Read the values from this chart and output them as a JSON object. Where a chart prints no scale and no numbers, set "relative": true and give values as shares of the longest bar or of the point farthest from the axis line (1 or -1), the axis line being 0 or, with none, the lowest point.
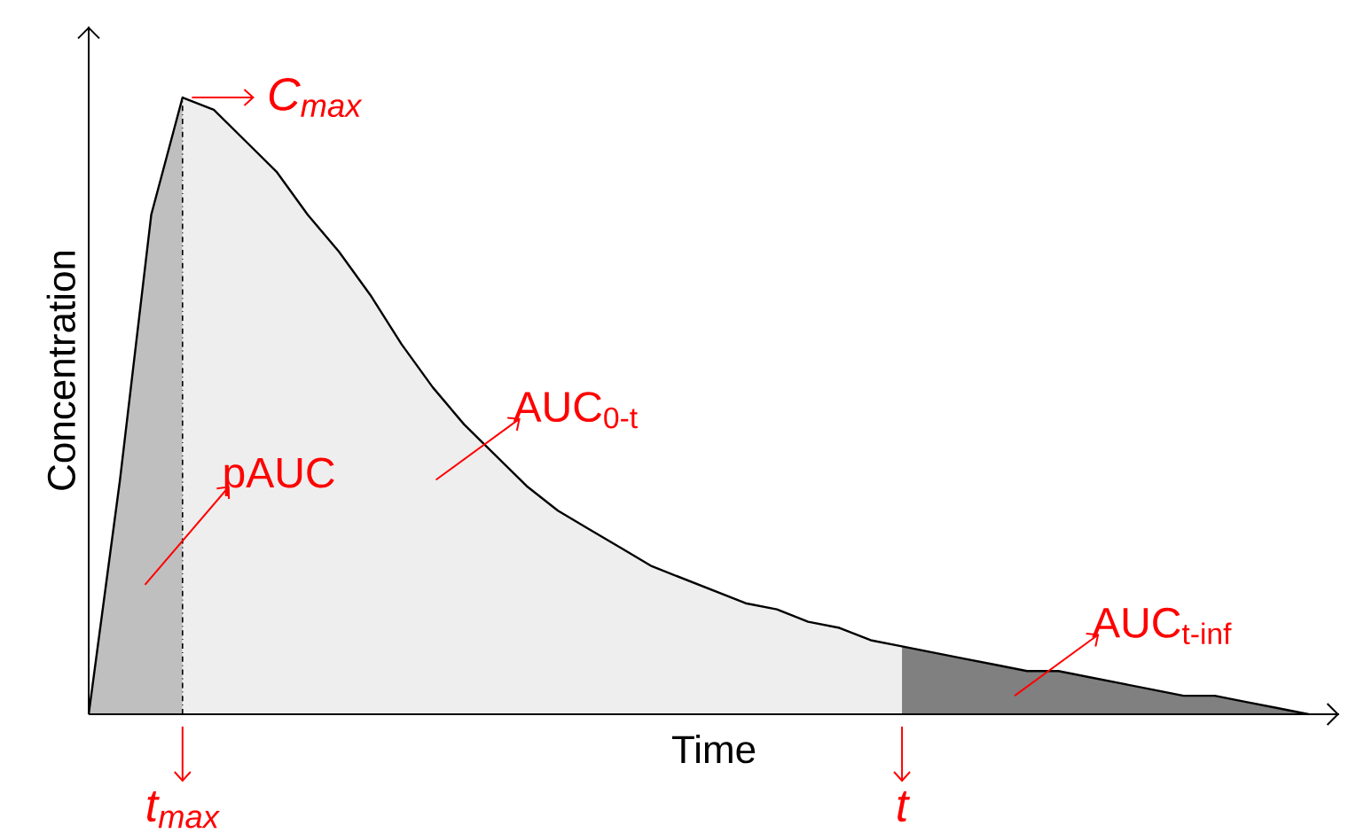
{
  "chart_data": {
    "type": "area",
    "relative": true,
    "xlabel": "Time",
    "ylabel": "Concentration",
    "categories": [
      null,
      null,
      null,
      null,
      null,
      null,
      null,
      null,
      null,
      null,
      null,
      null,
      null,
      null,
      null,
      null,
      null,
      null,
      null,
      null,
      null,
      null,
      null,
      null,
      null,
      null,
      null,
      null,
      null,
      null,
      null,
      null,
      null,
      null,
      null,
      null,
      null,
      null,
      null,
      null
    ],
    "series": [
      {
        "type": "line",
        "color": "#000000",
        "values": [
          0,
          0.38,
          0.81,
          1.0,
          0.98,
          0.93,
          0.88,
          0.81,
          0.75,
          0.68,
          0.6,
          0.53,
          0.47,
          0.42,
          0.37,
          0.33,
          0.3,
          0.27,
          0.24,
          0.22,
          0.2,
          0.18,
          0.17,
          0.15,
          0.14,
          0.12,
          0.11,
          0.1,
          0.09,
          0.08,
          0.07,
          0.07,
          0.06,
          0.05,
          0.04,
          0.03,
          0.03,
          0.02,
          0.01,
          0
        ]
      },
      {
        "name": "pAUC",
        "color": "#bfbfbf",
        "values": [
          0,
          0.38,
          0.81,
          1.0,
          null,
          null,
          null,
          null,
          null,
          null,
          null,
          null,
          null,
          null,
          null,
          null,
          null,
          null,
          null,
          null,
          null,
          null,
          null,
          null,
          null,
          null,
          null,
          null,
          null,
          null,
          null,
          null,
          null,
          null,
          null,
          null,
          null,
          null,
          null,
          null
        ]
      },
      {
        "name": "AUC$_{0-t}$",
        "color": "#eeeeee",
        "values": [
          null,
          null,
          null,
          1.0,
          0.98,
          0.93,
          0.88,
          0.81,
          0.75,
          0.68,
          0.6,
          0.53,
          0.47,
          0.42,
          0.37,
          0.33,
          0.3,
          0.27,
          0.24,
          0.22,
          0.2,
          0.18,
          0.17,
          0.15,
          0.14,
          0.12,
          0.11,
          null,
          null,
          null,
          null,
          null,
          null,
          null,
          null,
          null,
          null,
          null,
          null,
          null
        ]
      },
      {
        "name": "AUC$_{t-inf}$",
        "color": "#808080",
        "values": [
          null,
          null,
          null,
          null,
          null,
          null,
          null,
          null,
          null,
          null,
          null,
          null,
          null,
          null,
          null,
          null,
          null,
          null,
          null,
          null,
          null,
          null,
          null,
          null,
          null,
          null,
          0.11,
          0.1,
          0.09,
          0.08,
          0.07,
          0.07,
          0.06,
          0.05,
          0.04,
          0.03,
          0.03,
          0.02,
          0.01,
          0
        ]
      }
    ],
    "annotations": [
      "C$_{max}$",
      "t$_{max}$",
      "t"
    ]
  }
}
